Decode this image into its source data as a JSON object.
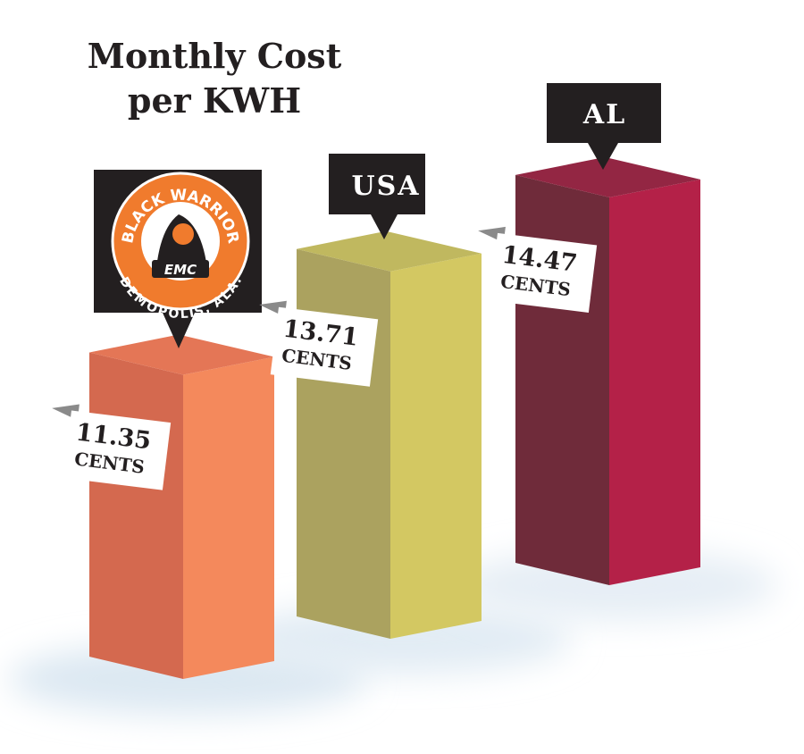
{
  "chart_data": {
    "type": "bar3d",
    "title": "Monthly Cost",
    "subtitle": "per KWH",
    "categories": [
      null,
      "USA",
      "AL"
    ],
    "values": [
      11.35,
      13.71,
      14.47
    ],
    "unit": "CENTS",
    "logo": {
      "name": "BLACK WARRIOR",
      "badge": "EMC",
      "place": "DEMOPOLIS, ALA."
    },
    "colors": [
      [
        "#d4694f",
        "#f4895c",
        "#e47656"
      ],
      [
        "#aba25f",
        "#d3c862",
        "#c0b85f"
      ],
      [
        "#6f2b3a",
        "#b42148",
        "#932643"
      ]
    ]
  }
}
